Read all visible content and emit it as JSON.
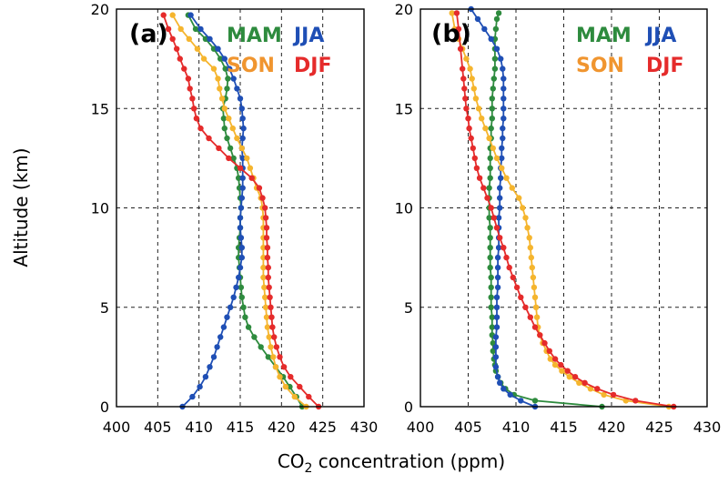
{
  "chart_data": [
    {
      "type": "line",
      "panel_label": "(a)",
      "xlabel_prefix": "CO",
      "xlabel_sub": "2",
      "xlabel_suffix": " concentration (ppm)",
      "ylabel": "Altitude (km)",
      "xlim": [
        400,
        430
      ],
      "ylim": [
        0,
        20
      ],
      "xticks": [
        400,
        405,
        410,
        415,
        420,
        425,
        430
      ],
      "yticks": [
        0,
        5,
        10,
        15,
        20
      ],
      "grid": true,
      "legend_placement": "top-right",
      "series": [
        {
          "name": "MAM",
          "color": "#2e8b3e",
          "x": [
            422.5,
            421.8,
            421.0,
            420.2,
            419.3,
            418.4,
            417.5,
            416.7,
            416.0,
            415.6,
            415.4,
            415.2,
            415.1,
            415.0,
            414.9,
            414.8,
            414.8,
            414.9,
            415.0,
            415.0,
            415.1,
            415.0,
            414.9,
            414.8,
            414.6,
            414.2,
            413.8,
            413.4,
            413.1,
            413.0,
            412.9,
            413.2,
            413.4,
            413.5,
            413.2,
            412.6,
            411.8,
            410.8,
            409.6,
            408.7
          ],
          "y": [
            0,
            0.5,
            1,
            1.5,
            2,
            2.5,
            3,
            3.5,
            4,
            4.5,
            5,
            5.5,
            6,
            6.5,
            7,
            7.5,
            8,
            8.5,
            9,
            9.5,
            10,
            10.5,
            11,
            11.5,
            12,
            12.5,
            13,
            13.5,
            14,
            14.5,
            15,
            15.5,
            16,
            16.5,
            17,
            17.5,
            18,
            18.5,
            19,
            19.7
          ]
        },
        {
          "name": "JJA",
          "color": "#1f4fb5",
          "x": [
            408.0,
            409.2,
            410.1,
            410.8,
            411.3,
            411.8,
            412.2,
            412.6,
            413.0,
            413.4,
            413.8,
            414.2,
            414.5,
            414.8,
            415.0,
            415.2,
            415.2,
            415.1,
            415.0,
            415.0,
            415.1,
            415.2,
            415.3,
            415.3,
            415.3,
            415.3,
            415.2,
            415.3,
            415.4,
            415.3,
            415.2,
            415.0,
            414.6,
            414.2,
            413.7,
            413.1,
            412.3,
            411.3,
            410.2,
            409.0
          ],
          "y": [
            0,
            0.5,
            1,
            1.5,
            2,
            2.5,
            3,
            3.5,
            4,
            4.5,
            5,
            5.5,
            6,
            6.5,
            7,
            7.5,
            8,
            8.5,
            9,
            9.5,
            10,
            10.5,
            11,
            11.5,
            12,
            12.5,
            13,
            13.5,
            14,
            14.5,
            15,
            15.5,
            16,
            16.5,
            17,
            17.5,
            18,
            18.5,
            19,
            19.7
          ]
        },
        {
          "name": "SON",
          "color": "#f5b52e",
          "x": [
            423.0,
            421.6,
            420.5,
            419.8,
            419.3,
            419.0,
            418.7,
            418.5,
            418.3,
            418.2,
            418.1,
            418.0,
            417.9,
            417.8,
            417.8,
            417.8,
            417.8,
            417.8,
            417.8,
            417.8,
            417.7,
            417.5,
            417.0,
            416.6,
            416.2,
            415.8,
            415.2,
            414.6,
            414.1,
            413.6,
            413.1,
            412.8,
            412.5,
            412.3,
            411.8,
            410.6,
            409.8,
            408.8,
            407.8,
            406.8
          ],
          "y": [
            0,
            0.5,
            1,
            1.5,
            2,
            2.5,
            3,
            3.5,
            4,
            4.5,
            5,
            5.5,
            6,
            6.5,
            7,
            7.5,
            8,
            8.5,
            9,
            9.5,
            10,
            10.5,
            11,
            11.5,
            12,
            12.5,
            13,
            13.5,
            14,
            14.5,
            15,
            15.5,
            16,
            16.5,
            17,
            17.5,
            18,
            18.5,
            19,
            19.7
          ]
        },
        {
          "name": "DJF",
          "color": "#e52b2b",
          "x": [
            424.5,
            423.3,
            422.2,
            421.1,
            420.3,
            419.8,
            419.4,
            419.1,
            418.9,
            418.8,
            418.7,
            418.6,
            418.5,
            418.4,
            418.4,
            418.3,
            418.3,
            418.2,
            418.2,
            418.1,
            418.0,
            417.7,
            417.3,
            416.4,
            415.0,
            413.6,
            412.4,
            411.2,
            410.2,
            409.7,
            409.4,
            409.2,
            408.9,
            408.7,
            408.2,
            407.7,
            407.3,
            406.8,
            406.3,
            405.7
          ],
          "y": [
            0,
            0.5,
            1,
            1.5,
            2,
            2.5,
            3,
            3.5,
            4,
            4.5,
            5,
            5.5,
            6,
            6.5,
            7,
            7.5,
            8,
            8.5,
            9,
            9.5,
            10,
            10.5,
            11,
            11.5,
            12,
            12.5,
            13,
            13.5,
            14,
            14.5,
            15,
            15.5,
            16,
            16.5,
            17,
            17.5,
            18,
            18.5,
            19,
            19.7
          ]
        }
      ]
    },
    {
      "type": "line",
      "panel_label": "(b)",
      "xlabel_prefix": "",
      "xlabel_sub": "",
      "xlabel_suffix": "",
      "ylabel": "",
      "xlim": [
        400,
        430
      ],
      "ylim": [
        0,
        20
      ],
      "xticks": [
        400,
        405,
        410,
        415,
        420,
        425,
        430
      ],
      "yticks": [
        0,
        5,
        10,
        15,
        20
      ],
      "grid": true,
      "legend_placement": "top-right",
      "series": [
        {
          "name": "MAM",
          "color": "#2e8b3e",
          "x": [
            419.0,
            412.0,
            409.8,
            408.9,
            408.4,
            408.1,
            407.9,
            407.8,
            407.7,
            407.6,
            407.6,
            407.5,
            407.5,
            407.5,
            407.4,
            407.4,
            407.4,
            407.4,
            407.3,
            407.3,
            407.3,
            407.3,
            407.3,
            407.2,
            407.2,
            407.2,
            407.2,
            407.3,
            407.3,
            407.3,
            407.3,
            407.4,
            407.4,
            407.5,
            407.5,
            407.5,
            407.6,
            407.7,
            407.8,
            407.8,
            407.8,
            407.8,
            407.9,
            408.0,
            408.2
          ],
          "y": [
            0,
            0.3,
            0.6,
            0.9,
            1.2,
            1.5,
            1.8,
            2.1,
            2.4,
            2.8,
            3.2,
            3.6,
            4,
            4.5,
            5,
            5.5,
            6,
            6.5,
            7,
            7.5,
            8,
            8.5,
            9,
            9.5,
            10,
            10.5,
            11,
            11.5,
            12,
            12.5,
            13,
            13.5,
            14,
            14.5,
            15,
            15.5,
            16,
            16.5,
            17,
            17.5,
            18,
            18.5,
            19,
            19.5,
            19.8
          ]
        },
        {
          "name": "JJA",
          "color": "#1f4fb5",
          "x": [
            412.0,
            410.5,
            409.4,
            408.7,
            408.3,
            408.1,
            407.9,
            407.9,
            407.9,
            407.9,
            408.0,
            408.0,
            408.0,
            408.0,
            408.1,
            408.1,
            408.1,
            408.1,
            408.2,
            408.2,
            408.2,
            408.2,
            408.3,
            408.3,
            408.3,
            408.4,
            408.4,
            408.5,
            408.5,
            408.6,
            408.6,
            408.7,
            408.7,
            408.7,
            408.7,
            408.7,
            408.6,
            408.4,
            408.0,
            407.4,
            406.7,
            406.0,
            405.3
          ],
          "y": [
            0,
            0.3,
            0.6,
            0.9,
            1.2,
            1.5,
            2,
            2.5,
            3,
            3.5,
            4,
            4.5,
            5,
            5.5,
            6,
            6.5,
            7,
            7.5,
            8,
            8.5,
            9,
            9.5,
            10,
            10.5,
            11,
            11.5,
            12,
            12.5,
            13,
            13.5,
            14,
            14.5,
            15,
            15.5,
            16,
            16.5,
            17,
            17.5,
            18,
            18.5,
            19,
            19.5,
            20
          ]
        },
        {
          "name": "SON",
          "color": "#f5b52e",
          "x": [
            426.0,
            421.5,
            419.2,
            417.8,
            416.6,
            415.6,
            414.8,
            414.1,
            413.6,
            413.2,
            412.8,
            412.5,
            412.3,
            412.2,
            412.1,
            412.0,
            411.9,
            411.8,
            411.7,
            411.6,
            411.5,
            411.4,
            411.2,
            411.0,
            410.7,
            410.3,
            409.6,
            409.0,
            408.5,
            408.0,
            407.6,
            407.2,
            406.8,
            406.4,
            406.1,
            405.8,
            405.6,
            405.4,
            405.2,
            404.8,
            404.4,
            404.0,
            403.6,
            403.3
          ],
          "y": [
            0,
            0.3,
            0.6,
            0.9,
            1.2,
            1.5,
            1.8,
            2.1,
            2.4,
            2.8,
            3.2,
            3.6,
            4,
            4.5,
            5,
            5.5,
            6,
            6.5,
            7,
            7.5,
            8,
            8.5,
            9,
            9.5,
            10,
            10.5,
            11,
            11.5,
            12,
            12.5,
            13,
            13.5,
            14,
            14.5,
            15,
            15.5,
            16,
            16.5,
            17,
            17.5,
            18,
            18.5,
            19,
            19.8
          ]
        },
        {
          "name": "DJF",
          "color": "#e52b2b",
          "x": [
            426.5,
            422.5,
            420.2,
            418.5,
            417.2,
            416.2,
            415.4,
            414.7,
            414.1,
            413.5,
            413.0,
            412.5,
            412.0,
            411.5,
            411.0,
            410.5,
            410.1,
            409.7,
            409.3,
            409.0,
            408.7,
            408.3,
            408.0,
            407.7,
            407.4,
            407.0,
            406.6,
            406.2,
            405.9,
            405.7,
            405.5,
            405.3,
            405.1,
            405.0,
            404.8,
            404.7,
            404.6,
            404.5,
            404.4,
            404.2,
            404.0,
            403.8
          ],
          "y": [
            0,
            0.3,
            0.6,
            0.9,
            1.2,
            1.5,
            1.8,
            2.1,
            2.4,
            2.8,
            3.2,
            3.6,
            4,
            4.5,
            5,
            5.5,
            6,
            6.5,
            7,
            7.5,
            8,
            8.5,
            9,
            9.5,
            10,
            10.5,
            11,
            11.5,
            12,
            12.5,
            13,
            13.5,
            14,
            14.5,
            15,
            15.5,
            16,
            16.5,
            17,
            18,
            19,
            19.8
          ]
        }
      ]
    }
  ]
}
